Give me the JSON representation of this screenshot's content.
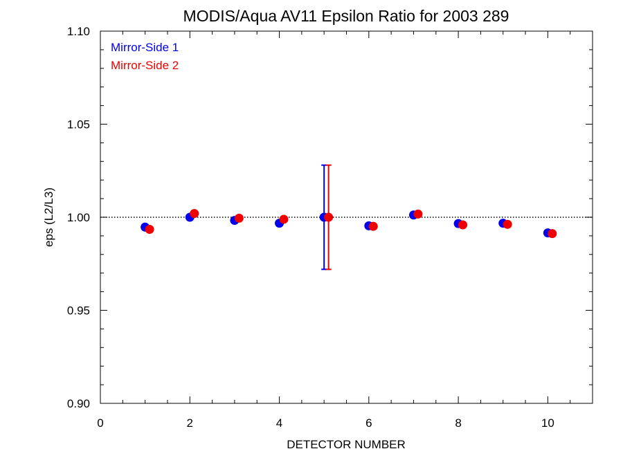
{
  "chart_data": {
    "type": "scatter",
    "title": "MODIS/Aqua AV11 Epsilon Ratio for 2003 289",
    "xlabel": "DETECTOR NUMBER",
    "ylabel": "eps (L2/L3)",
    "xlim": [
      0,
      11
    ],
    "ylim": [
      0.9,
      1.1
    ],
    "x_ticks": [
      0,
      2,
      4,
      6,
      8,
      10
    ],
    "x_tick_labels": [
      "0",
      "2",
      "4",
      "6",
      "8",
      "10"
    ],
    "y_ticks": [
      0.9,
      0.95,
      1.0,
      1.05,
      1.1
    ],
    "y_tick_labels": [
      "0.90",
      "0.95",
      "1.00",
      "1.05",
      "1.10"
    ],
    "reference_line": {
      "y": 1.0,
      "style": "dotted"
    },
    "legend_position": "top-left",
    "grid": false,
    "series": [
      {
        "name": "Mirror-Side 1",
        "color": "#0000ee",
        "x": [
          1,
          2,
          3,
          4,
          5,
          6,
          7,
          8,
          9,
          10
        ],
        "y": [
          0.9947,
          1.0,
          0.9983,
          0.9968,
          1.0,
          0.9954,
          1.0012,
          0.9966,
          0.9968,
          0.9916
        ],
        "error_bars": [
          {
            "x": 5,
            "low": 0.972,
            "high": 1.028
          }
        ]
      },
      {
        "name": "Mirror-Side 2",
        "color": "#ee0000",
        "x": [
          1.1,
          2.1,
          3.1,
          4.1,
          5.1,
          6.1,
          7.1,
          8.1,
          9.1,
          10.1
        ],
        "y": [
          0.9935,
          1.002,
          0.9995,
          0.9989,
          1.0,
          0.9951,
          1.0017,
          0.9959,
          0.9962,
          0.9912
        ],
        "error_bars": [
          {
            "x": 5.1,
            "low": 0.972,
            "high": 1.028
          }
        ]
      }
    ]
  }
}
